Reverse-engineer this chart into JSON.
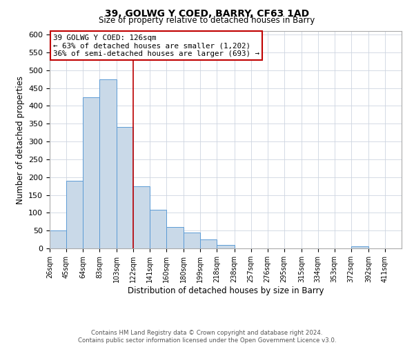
{
  "title": "39, GOLWG Y COED, BARRY, CF63 1AD",
  "subtitle": "Size of property relative to detached houses in Barry",
  "xlabel": "Distribution of detached houses by size in Barry",
  "ylabel": "Number of detached properties",
  "bin_labels": [
    "26sqm",
    "45sqm",
    "64sqm",
    "83sqm",
    "103sqm",
    "122sqm",
    "141sqm",
    "160sqm",
    "180sqm",
    "199sqm",
    "218sqm",
    "238sqm",
    "257sqm",
    "276sqm",
    "295sqm",
    "315sqm",
    "334sqm",
    "353sqm",
    "372sqm",
    "392sqm",
    "411sqm"
  ],
  "bar_heights": [
    50,
    190,
    425,
    475,
    340,
    175,
    108,
    60,
    44,
    25,
    10,
    0,
    0,
    0,
    0,
    0,
    0,
    0,
    5,
    0,
    0
  ],
  "bar_color": "#c9d9e8",
  "bar_edge_color": "#5b9bd5",
  "vline_x": 122,
  "vline_color": "#c00000",
  "annotation_title": "39 GOLWG Y COED: 126sqm",
  "annotation_line1": "← 63% of detached houses are smaller (1,202)",
  "annotation_line2": "36% of semi-detached houses are larger (693) →",
  "annotation_box_edge_color": "#c00000",
  "ylim": [
    0,
    610
  ],
  "yticks": [
    0,
    50,
    100,
    150,
    200,
    250,
    300,
    350,
    400,
    450,
    500,
    550,
    600
  ],
  "footer_line1": "Contains HM Land Registry data © Crown copyright and database right 2024.",
  "footer_line2": "Contains public sector information licensed under the Open Government Licence v3.0.",
  "background_color": "#ffffff",
  "grid_color": "#cdd5e0"
}
